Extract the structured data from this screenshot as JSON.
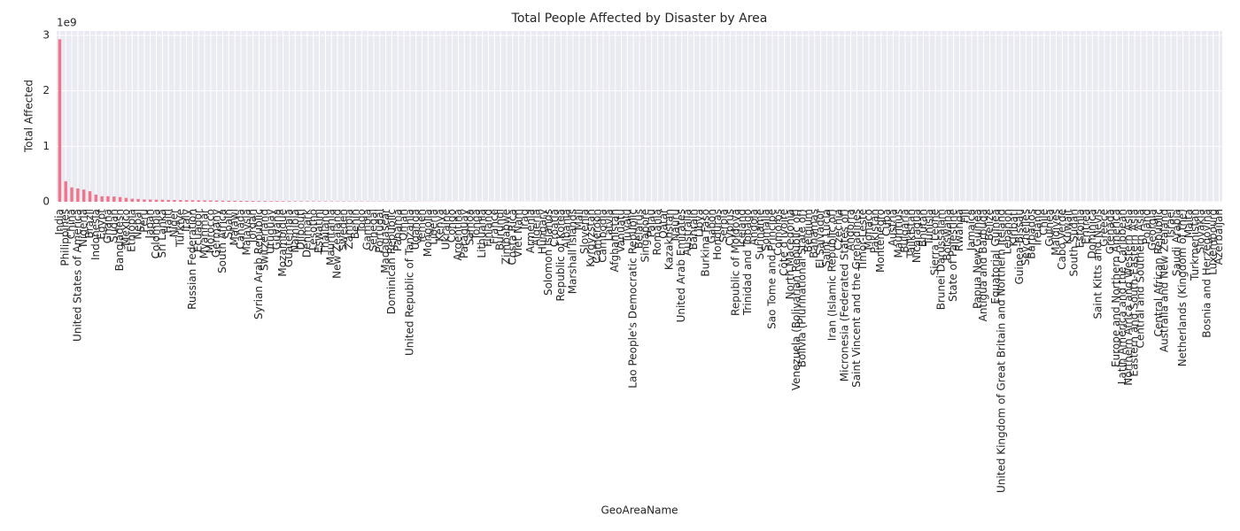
{
  "chart_data": {
    "type": "bar",
    "title": "Total People Affected by Disaster by Area",
    "xlabel": "GeoAreaName",
    "ylabel": "Total Affected",
    "y_offset_label": "1e9",
    "color": "#f0758a",
    "grid": true,
    "ylim": [
      0,
      3.08
    ],
    "yticks": [
      0,
      1,
      2,
      3
    ],
    "categories": [
      "India",
      "Philippines",
      "China",
      "United States of America",
      "Nigeria",
      "Brazil",
      "Indonesia",
      "Egypt",
      "Ghana",
      "Sudan",
      "Bangladesh",
      "Mexico",
      "Ethiopia",
      "Nepal",
      "Peru",
      "Japan",
      "Colombia",
      "Sri Lanka",
      "Haiti",
      "Niger",
      "Türkiye",
      "Italy",
      "Russian Federation",
      "Ecuador",
      "Myanmar",
      "Morocco",
      "Germany",
      "South Africa",
      "Spain",
      "Malawi",
      "Canada",
      "Malaysia",
      "Jordan",
      "Syrian Arab Republic",
      "Switzerland",
      "Uruguay",
      "Guyana",
      "Mozambique",
      "Guatemala",
      "Namibia",
      "Djibouti",
      "Denmark",
      "Lesotho",
      "Eswatini",
      "Thailand",
      "Mauritania",
      "New Zealand",
      "Sweden",
      "Zambia",
      "Benin",
      "Togo",
      "Gambia",
      "Senegal",
      "Portugal",
      "Madagascar",
      "Dominican Republic",
      "Panama",
      "Oman",
      "United Republic of Tanzania",
      "Uganda",
      "Yemen",
      "Mongolia",
      "Liberia",
      "Kenya",
      "Ukraine",
      "Congo",
      "Argentina",
      "Paraguay",
      "Samoa",
      "Tonga",
      "Lithuania",
      "Finland",
      "France",
      "Burundi",
      "Zimbabwe",
      "Costa Rica",
      "Viet Nam",
      "Iraq",
      "Armenia",
      "Algeria",
      "Hungary",
      "Solomon Islands",
      "Croatia",
      "Republic of Korea",
      "Albania",
      "Marshall Islands",
      "Mali",
      "Slovenia",
      "Kyrgyzstan",
      "Cameroon",
      "Cambodia",
      "Latvia",
      "Afghanistan",
      "Vanuatu",
      "Tuvalu",
      "Lao People's Democratic Republic",
      "Belarus",
      "Singapore",
      "Palau",
      "Romania",
      "Qatar",
      "Kazakhstan",
      "Nauru",
      "United Arab Emirates",
      "Australia",
      "Bahrain",
      "Libya",
      "Burkina Faso",
      "Gabon",
      "Honduras",
      "Serbia",
      "Cyprus",
      "Republic of Moldova",
      "Iceland",
      "Trinidad and Tobago",
      "Angola",
      "Suriname",
      "Somalia",
      "Sao Tome and Principe",
      "Comoros",
      "Côte d'Ivoire",
      "North Macedonia",
      "Venezuela (Bolivarian Republic of)",
      "Bolivia (Plurinational State of)",
      "Belgium",
      "Bahamas",
      "El Salvador",
      "Saint Lucia",
      "Iran (Islamic Republic of)",
      "Czechia",
      "Micronesia (Federated States of)",
      "Andorra",
      "Saint Vincent and the Grenadines",
      "Timor-Leste",
      "Monaco",
      "Pakistan",
      "Montenegro",
      "Cuba",
      "Austria",
      "Mauritius",
      "Bulgaria",
      "Tajikistan",
      "Nicaragua",
      "Bhutan",
      "Tunisia",
      "Sierra Leone",
      "Brunei Darussalam",
      "Botswana",
      "State of Palestine",
      "Rwanda",
      "Fiji",
      "Jamaica",
      "Papua New Guinea",
      "Antigua and Barbuda",
      "Belize",
      "Equatorial Guinea",
      "United Kingdom of Great Britain and Northern Ireland",
      "Lebanon",
      "Kiribati",
      "Guinea-Bissau",
      "Seychelles",
      "Barbados",
      "Ireland",
      "Chile",
      "Guinea",
      "Maldives",
      "Cabo Verde",
      "Kuwait",
      "South Sudan",
      "Estonia",
      "Eritrea",
      "Dominica",
      "Saint Kitts and Nevis",
      "Greece",
      "Grenada",
      "Europe and Northern America",
      "Latin America and the Caribbean",
      "Northern Africa and Western Asia",
      "Eastern and South-Eastern Asia",
      "Central and Southern Asia",
      "Poland",
      "Georgia",
      "Central African Republic",
      "Australia and New Zealand",
      "Israel",
      "Saudi Arabia",
      "Netherlands (Kingdom of the)",
      "Malta",
      "Turkmenistan",
      "Slovakia",
      "Bosnia and Herzegovina",
      "Luxembourg",
      "Azerbaijan"
    ],
    "values": [
      2.93,
      0.37,
      0.26,
      0.24,
      0.22,
      0.19,
      0.13,
      0.1,
      0.1,
      0.095,
      0.085,
      0.07,
      0.055,
      0.05,
      0.042,
      0.04,
      0.038,
      0.036,
      0.034,
      0.032,
      0.03,
      0.029,
      0.028,
      0.027,
      0.026,
      0.024,
      0.022,
      0.02,
      0.019,
      0.018,
      0.017,
      0.016,
      0.015,
      0.014,
      0.013,
      0.012,
      0.012,
      0.011,
      0.011,
      0.01,
      0.01,
      0.009,
      0.009,
      0.008,
      0.008,
      0.008,
      0.007,
      0.007,
      0.007,
      0.006,
      0.006,
      0.006,
      0.005,
      0.005,
      0.005,
      0.005,
      0.004,
      0.004,
      0.004,
      0.004,
      0.003,
      0.003,
      0.003,
      0.002,
      0.002,
      0.002,
      0.002,
      0.001,
      0.001,
      0.001,
      0.001,
      0.001,
      0.001,
      0.001,
      0.001,
      0.001,
      0.001,
      0.001,
      0.001,
      0.001,
      0.001,
      0.001,
      0.001,
      0.001,
      0.001,
      0.001,
      0.001,
      0.001,
      0.001,
      0.001,
      0,
      0,
      0,
      0,
      0,
      0,
      0,
      0,
      0,
      0,
      0,
      0,
      0,
      0,
      0,
      0,
      0,
      0,
      0,
      0,
      0,
      0,
      0,
      0,
      0,
      0,
      0,
      0,
      0,
      0,
      0,
      0,
      0,
      0,
      0,
      0,
      0,
      0,
      0,
      0,
      0,
      0,
      0,
      0,
      0,
      0,
      0,
      0,
      0,
      0,
      0,
      0,
      0,
      0,
      0,
      0,
      0,
      0,
      0,
      0,
      0,
      0,
      0,
      0,
      0,
      0,
      0,
      0,
      0,
      0,
      0,
      0,
      0,
      0,
      0,
      0,
      0,
      0,
      0,
      0,
      0,
      0,
      0,
      0,
      0,
      0,
      0,
      0,
      0,
      0,
      0,
      0,
      0,
      0,
      0,
      0,
      0,
      0,
      0,
      0,
      0,
      0,
      0
    ]
  }
}
